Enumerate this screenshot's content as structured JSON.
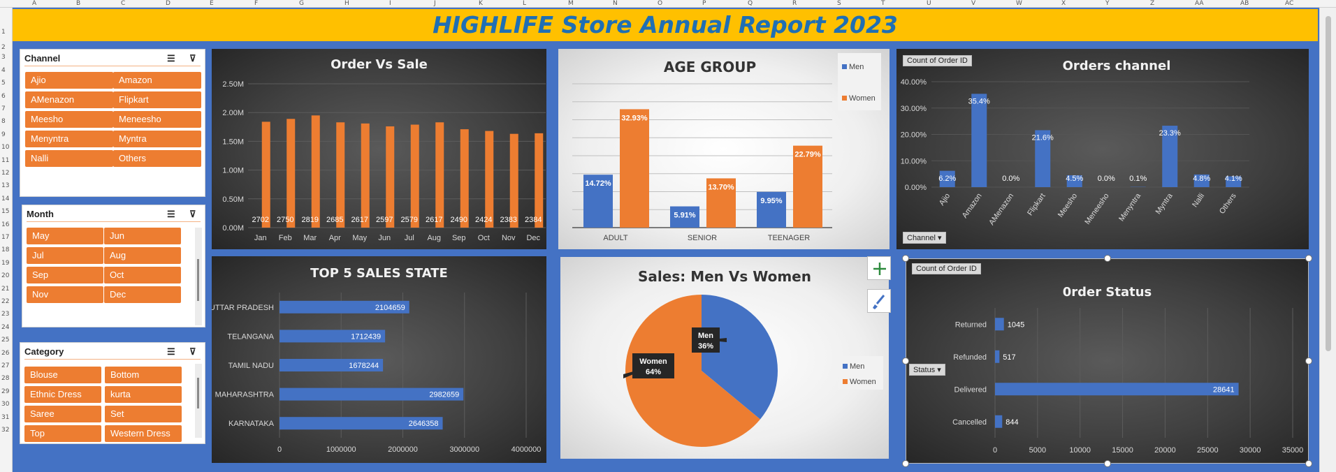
{
  "sheet": {
    "columns": [
      "A",
      "B",
      "C",
      "D",
      "E",
      "F",
      "G",
      "H",
      "I",
      "J",
      "K",
      "L",
      "M",
      "N",
      "O",
      "P",
      "Q",
      "R",
      "S",
      "T",
      "U",
      "V",
      "W",
      "X",
      "Y",
      "Z",
      "AA",
      "AB",
      "AC"
    ],
    "rows": [
      "1",
      "2",
      "3",
      "4",
      "5",
      "6",
      "7",
      "8",
      "9",
      "10",
      "11",
      "12",
      "13",
      "14",
      "15",
      "16",
      "17",
      "18",
      "19",
      "20",
      "21",
      "22",
      "23",
      "24",
      "25",
      "26",
      "27",
      "28",
      "29",
      "30",
      "31",
      "32"
    ]
  },
  "title": "HIGHLIFE Store Annual Report 2023",
  "slicers": {
    "channel": {
      "title": "Channel",
      "items": [
        "Ajio",
        "Amazon",
        "AMenazon",
        "Flipkart",
        "Meesho",
        "Meneesho",
        "Menyntra",
        "Myntra",
        "Nalli",
        "Others"
      ]
    },
    "month": {
      "title": "Month",
      "items": [
        "May",
        "Jun",
        "Jul",
        "Aug",
        "Sep",
        "Oct",
        "Nov",
        "Dec"
      ]
    },
    "category": {
      "title": "Category",
      "items": [
        "Blouse",
        "Bottom",
        "Ethnic Dress",
        "kurta",
        "Saree",
        "Set",
        "Top",
        "Western Dress"
      ]
    }
  },
  "icons": {
    "multiselect": "multi-select-icon",
    "clear_filter": "clear-filter-icon",
    "plus": "chart-elements-plus-icon",
    "brush": "chart-styles-brush-icon"
  },
  "colors": {
    "orange": "#ed7d31",
    "blue": "#4472c4",
    "gold": "#ffc000",
    "title_blue": "#1f6fb4"
  },
  "chart_data": [
    {
      "type": "bar",
      "title": "Order Vs Sale",
      "categories": [
        "Jan",
        "Feb",
        "Mar",
        "Apr",
        "May",
        "Jun",
        "Jul",
        "Aug",
        "Sep",
        "Oct",
        "Nov",
        "Dec"
      ],
      "series": [
        {
          "values": [
            1840000,
            1890000,
            1950000,
            1830000,
            1810000,
            1760000,
            1790000,
            1830000,
            1710000,
            1680000,
            1630000,
            1640000
          ]
        }
      ],
      "labels": [
        "2702",
        "2750",
        "2819",
        "2685",
        "2617",
        "2597",
        "2579",
        "2617",
        "2490",
        "2424",
        "2383",
        "2384"
      ],
      "yticks": [
        "0.00M",
        "0.50M",
        "1.00M",
        "1.50M",
        "2.00M",
        "2.50M"
      ],
      "ylim": [
        0,
        2500000
      ]
    },
    {
      "type": "bar",
      "title": "AGE GROUP",
      "categories": [
        "ADULT",
        "SENIOR",
        "TEENAGER"
      ],
      "series": [
        {
          "name": "Men",
          "values": [
            14.72,
            5.91,
            9.95
          ],
          "labels": [
            "14.72%",
            "5.91%",
            "9.95%"
          ]
        },
        {
          "name": "Women",
          "values": [
            32.93,
            13.7,
            22.79
          ],
          "labels": [
            "32.93%",
            "13.70%",
            "22.79%"
          ]
        }
      ],
      "ylim": [
        0,
        40
      ],
      "legend": "top-right"
    },
    {
      "type": "bar",
      "title": "Orders channel",
      "field_button": "Count of Order ID",
      "axis_button": "Channel",
      "categories": [
        "Ajio",
        "Amazon",
        "AMenazon",
        "Flipkart",
        "Meesho",
        "Meneesho",
        "Menyntra",
        "Myntra",
        "Nalli",
        "Others"
      ],
      "values": [
        6.2,
        35.4,
        0.0,
        21.6,
        4.5,
        0.0,
        0.1,
        23.3,
        4.8,
        4.1
      ],
      "labels": [
        "6.2%",
        "35.4%",
        "0.0%",
        "21.6%",
        "4.5%",
        "0.0%",
        "0.1%",
        "23.3%",
        "4.8%",
        "4.1%"
      ],
      "yticks": [
        "0.00%",
        "10.00%",
        "20.00%",
        "30.00%",
        "40.00%"
      ],
      "ylim": [
        0,
        40
      ]
    },
    {
      "type": "bar",
      "orientation": "horizontal",
      "title": "TOP 5 SALES STATE",
      "categories": [
        "UTTAR PRADESH",
        "TELANGANA",
        "TAMIL NADU",
        "MAHARASHTRA",
        "KARNATAKA"
      ],
      "values": [
        2104659,
        1712439,
        1678244,
        2982659,
        2646358
      ],
      "xticks": [
        "0",
        "1000000",
        "2000000",
        "3000000",
        "4000000"
      ],
      "xlim": [
        0,
        4000000
      ]
    },
    {
      "type": "pie",
      "title": "Sales: Men Vs Women",
      "categories": [
        "Men",
        "Women"
      ],
      "values": [
        36,
        64
      ],
      "labels": [
        "Men",
        "Women"
      ],
      "pct_labels": [
        "36%",
        "64%"
      ],
      "legend": "right"
    },
    {
      "type": "bar",
      "orientation": "horizontal",
      "title": "0rder Status",
      "field_button": "Count of Order ID",
      "axis_button": "Status",
      "categories": [
        "Returned",
        "Refunded",
        "Delivered",
        "Cancelled"
      ],
      "values": [
        1045,
        517,
        28641,
        844
      ],
      "xticks": [
        "0",
        "5000",
        "10000",
        "15000",
        "20000",
        "25000",
        "30000",
        "35000"
      ],
      "xlim": [
        0,
        35000
      ]
    }
  ]
}
